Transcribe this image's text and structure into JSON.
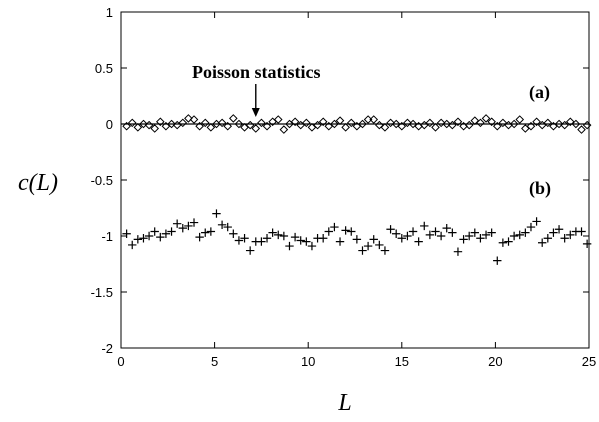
{
  "chart_data": {
    "type": "scatter",
    "xlabel": "L",
    "ylabel": "c(L)",
    "xlim": [
      0,
      25
    ],
    "ylim": [
      -2,
      1
    ],
    "x_ticks": [
      0,
      5,
      10,
      15,
      20,
      25
    ],
    "y_ticks": [
      1,
      0.5,
      0,
      -0.5,
      -1,
      -1.5,
      -2
    ],
    "grid": false,
    "annotation": {
      "text": "Poisson statistics",
      "points_to": {
        "x": 7.2,
        "y": 0
      }
    },
    "reference_line": {
      "y": 0
    },
    "series": [
      {
        "label": "(a)",
        "marker": "diamond",
        "x": [
          0.3,
          0.6,
          0.9,
          1.2,
          1.5,
          1.8,
          2.1,
          2.4,
          2.7,
          3.0,
          3.3,
          3.6,
          3.9,
          4.2,
          4.5,
          4.8,
          5.1,
          5.4,
          5.7,
          6.0,
          6.3,
          6.6,
          6.9,
          7.2,
          7.5,
          7.8,
          8.1,
          8.4,
          8.7,
          9.0,
          9.3,
          9.6,
          9.9,
          10.2,
          10.5,
          10.8,
          11.1,
          11.4,
          11.7,
          12.0,
          12.3,
          12.6,
          12.9,
          13.2,
          13.5,
          13.8,
          14.1,
          14.4,
          14.7,
          15.0,
          15.3,
          15.6,
          15.9,
          16.2,
          16.5,
          16.8,
          17.1,
          17.4,
          17.7,
          18.0,
          18.3,
          18.6,
          18.9,
          19.2,
          19.5,
          19.8,
          20.1,
          20.4,
          20.7,
          21.0,
          21.3,
          21.6,
          21.9,
          22.2,
          22.5,
          22.8,
          23.1,
          23.4,
          23.7,
          24.0,
          24.3,
          24.6,
          24.9
        ],
        "y": [
          -0.02,
          0.01,
          -0.03,
          0.0,
          -0.01,
          -0.04,
          0.02,
          -0.02,
          0.0,
          -0.01,
          0.01,
          0.05,
          0.04,
          -0.02,
          0.01,
          -0.03,
          0.0,
          0.01,
          -0.02,
          0.05,
          0.0,
          -0.03,
          -0.01,
          -0.04,
          0.01,
          -0.02,
          0.02,
          0.04,
          -0.05,
          0.0,
          0.02,
          -0.01,
          0.01,
          -0.03,
          -0.01,
          0.02,
          -0.02,
          0.0,
          0.03,
          -0.03,
          0.01,
          -0.02,
          0.0,
          0.04,
          0.04,
          -0.01,
          -0.03,
          0.01,
          0.0,
          -0.02,
          0.01,
          0.0,
          -0.02,
          -0.01,
          0.01,
          -0.03,
          0.01,
          0.0,
          -0.01,
          0.02,
          -0.02,
          -0.01,
          0.03,
          0.01,
          0.05,
          0.02,
          -0.02,
          0.01,
          -0.01,
          0.0,
          0.04,
          -0.04,
          -0.02,
          0.02,
          -0.01,
          0.01,
          -0.02,
          0.0,
          -0.01,
          0.02,
          0.0,
          -0.05,
          -0.01
        ]
      },
      {
        "label": "(b)",
        "marker": "plus",
        "x": [
          0.3,
          0.6,
          0.9,
          1.2,
          1.5,
          1.8,
          2.1,
          2.4,
          2.7,
          3.0,
          3.3,
          3.6,
          3.9,
          4.2,
          4.5,
          4.8,
          5.1,
          5.4,
          5.7,
          6.0,
          6.3,
          6.6,
          6.9,
          7.2,
          7.5,
          7.8,
          8.1,
          8.4,
          8.7,
          9.0,
          9.3,
          9.6,
          9.9,
          10.2,
          10.5,
          10.8,
          11.1,
          11.4,
          11.7,
          12.0,
          12.3,
          12.6,
          12.9,
          13.2,
          13.5,
          13.8,
          14.1,
          14.4,
          14.7,
          15.0,
          15.3,
          15.6,
          15.9,
          16.2,
          16.5,
          16.8,
          17.1,
          17.4,
          17.7,
          18.0,
          18.3,
          18.6,
          18.9,
          19.2,
          19.5,
          19.8,
          20.1,
          20.4,
          20.7,
          21.0,
          21.3,
          21.6,
          21.9,
          22.2,
          22.5,
          22.8,
          23.1,
          23.4,
          23.7,
          24.0,
          24.3,
          24.6,
          24.9
        ],
        "y": [
          -0.98,
          -1.08,
          -1.03,
          -1.02,
          -1.0,
          -0.96,
          -1.01,
          -0.98,
          -0.96,
          -0.89,
          -0.93,
          -0.91,
          -0.88,
          -1.01,
          -0.97,
          -0.96,
          -0.8,
          -0.9,
          -0.92,
          -0.98,
          -1.04,
          -1.02,
          -1.13,
          -1.05,
          -1.05,
          -1.02,
          -0.97,
          -0.99,
          -1.0,
          -1.09,
          -1.01,
          -1.04,
          -1.05,
          -1.09,
          -1.02,
          -1.02,
          -0.96,
          -0.92,
          -1.05,
          -0.95,
          -0.96,
          -1.03,
          -1.13,
          -1.09,
          -1.03,
          -1.08,
          -1.13,
          -0.94,
          -0.98,
          -1.02,
          -1.0,
          -0.96,
          -1.05,
          -0.91,
          -0.99,
          -0.96,
          -1.0,
          -0.93,
          -0.97,
          -1.14,
          -1.03,
          -1.0,
          -0.97,
          -1.02,
          -0.99,
          -0.97,
          -1.22,
          -1.06,
          -1.05,
          -1.0,
          -0.99,
          -0.97,
          -0.92,
          -0.87,
          -1.06,
          -1.02,
          -0.97,
          -0.94,
          -1.02,
          -0.99,
          -0.96,
          -0.96,
          -1.07
        ]
      }
    ]
  }
}
